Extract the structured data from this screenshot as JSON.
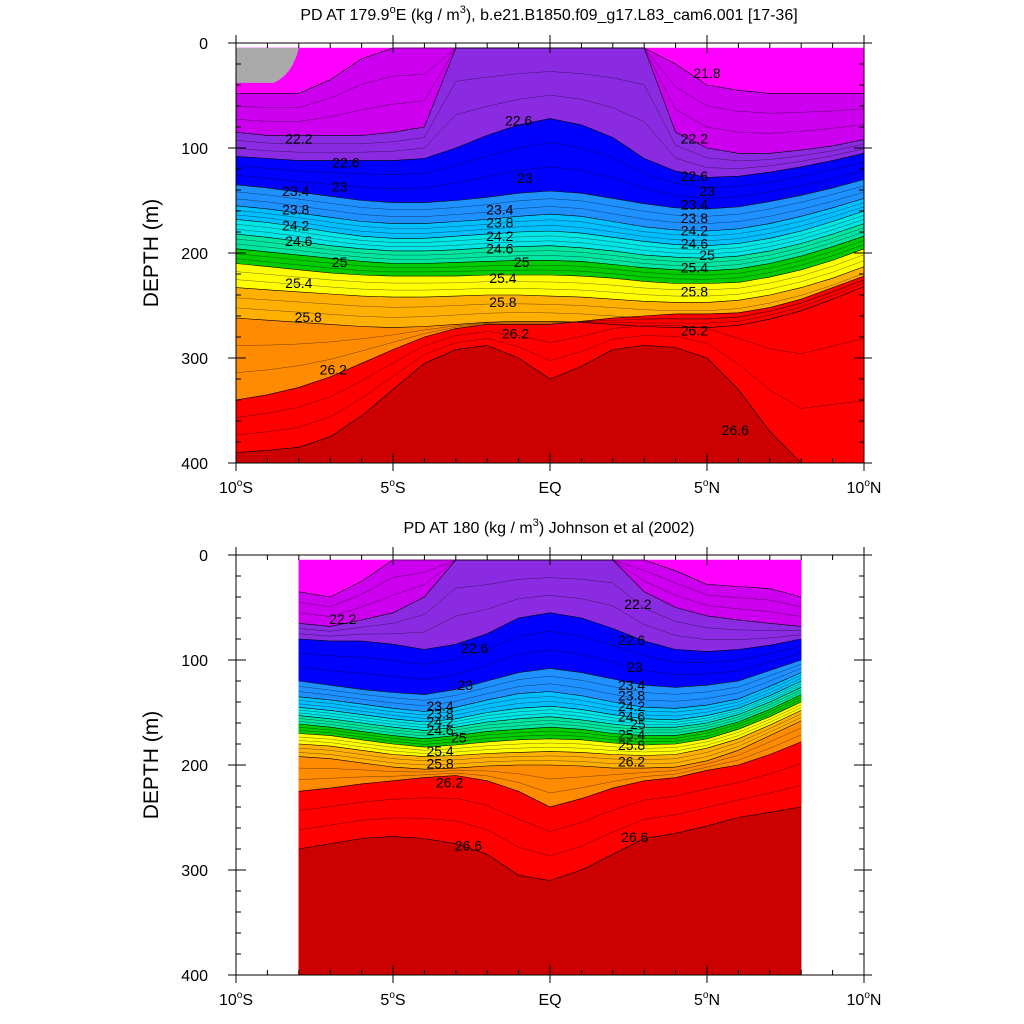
{
  "chart_data": [
    {
      "type": "contour",
      "title_text": "PD AT 179.9°E (kg / m3), b.e21.B1850.f09_g17.L83_cam6.001 [17-36]",
      "title_parts": {
        "a": "PD AT 179.9",
        "deg": "o",
        "b": "E (kg / m",
        "sup": "3",
        "c": "), b.e21.B1850.f09_g17.L83_cam6.001 [17-36]"
      },
      "ylabel": "DEPTH (m)",
      "xlabel": "",
      "x_range": [
        -10,
        10
      ],
      "y_range": [
        0,
        400
      ],
      "y_reversed": true,
      "x_data_extent": [
        -10,
        10
      ],
      "x_ticks": [
        -10,
        -5,
        0,
        5,
        10
      ],
      "x_tick_labels": [
        {
          "num": "10",
          "deg": "o",
          "hem": "S"
        },
        {
          "num": "5",
          "deg": "o",
          "hem": "S"
        },
        {
          "num": "",
          "deg": "",
          "hem": "EQ"
        },
        {
          "num": "5",
          "deg": "o",
          "hem": "N"
        },
        {
          "num": "10",
          "deg": "o",
          "hem": "N"
        }
      ],
      "y_ticks": [
        0,
        100,
        200,
        300,
        400
      ],
      "y_tick_labels": [
        "0",
        "100",
        "200",
        "300",
        "400"
      ],
      "lon": [
        -10,
        -9,
        -8,
        -7,
        -6,
        -5,
        -4,
        -3,
        -2,
        -1,
        0,
        1,
        2,
        3,
        4,
        5,
        6,
        7,
        8,
        9,
        10
      ],
      "isopycnal_depths": [
        {
          "level": 21.8,
          "depth": [
            48,
            48,
            48,
            35,
            15,
            0,
            0,
            0,
            0,
            0,
            0,
            0,
            0,
            0,
            20,
            40,
            45,
            48,
            48,
            48,
            48
          ]
        },
        {
          "level": 22.2,
          "depth": [
            85,
            88,
            88,
            88,
            88,
            85,
            80,
            0,
            0,
            0,
            0,
            0,
            0,
            0,
            85,
            100,
            105,
            105,
            102,
            98,
            92
          ]
        },
        {
          "level": 22.6,
          "depth": [
            108,
            110,
            112,
            112,
            112,
            112,
            110,
            100,
            88,
            78,
            72,
            78,
            90,
            110,
            122,
            128,
            127,
            123,
            118,
            112,
            105
          ]
        },
        {
          "level": 23.0,
          "depth": [
            135,
            138,
            142,
            146,
            150,
            152,
            152,
            150,
            147,
            143,
            141,
            143,
            148,
            153,
            157,
            158,
            156,
            151,
            145,
            138,
            130
          ]
        },
        {
          "level": 23.4,
          "depth": [
            155,
            158,
            162,
            166,
            170,
            172,
            172,
            170,
            168,
            165,
            163,
            165,
            170,
            175,
            178,
            179,
            177,
            172,
            165,
            157,
            148
          ]
        },
        {
          "level": 23.8,
          "depth": [
            168,
            171,
            175,
            180,
            184,
            186,
            186,
            184,
            182,
            180,
            179,
            181,
            185,
            189,
            192,
            193,
            191,
            186,
            179,
            170,
            160
          ]
        },
        {
          "level": 24.2,
          "depth": [
            182,
            185,
            189,
            193,
            196,
            198,
            198,
            197,
            195,
            194,
            193,
            195,
            198,
            202,
            204,
            205,
            203,
            198,
            191,
            182,
            172
          ]
        },
        {
          "level": 24.6,
          "depth": [
            196,
            199,
            202,
            205,
            208,
            210,
            210,
            209,
            208,
            207,
            207,
            208,
            211,
            214,
            216,
            217,
            215,
            210,
            203,
            194,
            184
          ]
        },
        {
          "level": 25.0,
          "depth": [
            210,
            213,
            216,
            219,
            221,
            222,
            222,
            222,
            221,
            221,
            221,
            222,
            224,
            227,
            229,
            229,
            228,
            223,
            216,
            207,
            196
          ]
        },
        {
          "level": 25.4,
          "depth": [
            233,
            235,
            237,
            239,
            241,
            242,
            242,
            241,
            240,
            240,
            241,
            242,
            244,
            246,
            247,
            247,
            245,
            240,
            233,
            224,
            213
          ]
        },
        {
          "level": 25.8,
          "depth": [
            262,
            264,
            266,
            268,
            270,
            271,
            270,
            268,
            266,
            265,
            265,
            266,
            268,
            270,
            271,
            271,
            269,
            263,
            255,
            244,
            232
          ]
        },
        {
          "level": 26.2,
          "depth": [
            340,
            335,
            328,
            318,
            305,
            292,
            280,
            272,
            268,
            268,
            268,
            265,
            262,
            260,
            258,
            258,
            257,
            252,
            244,
            233,
            222
          ]
        },
        {
          "level": 26.6,
          "depth": [
            390,
            388,
            385,
            375,
            355,
            330,
            305,
            292,
            288,
            300,
            320,
            308,
            292,
            288,
            290,
            300,
            330,
            370,
            400,
            400,
            400
          ]
        }
      ],
      "band_colors": [
        "#FF00FF",
        "#CC00EE",
        "#8A2BE2",
        "#0000FF",
        "#1E90FF",
        "#00BFFF",
        "#00E5E5",
        "#00E5A0",
        "#00CC00",
        "#FFFF00",
        "#FFB000",
        "#FF8C00",
        "#FF0000",
        "#CC0000"
      ],
      "labels": [
        {
          "text": "22.2",
          "lon": -8.0,
          "depth": 92
        },
        {
          "text": "22.6",
          "lon": -6.5,
          "depth": 115
        },
        {
          "text": "23",
          "lon": -6.7,
          "depth": 138
        },
        {
          "text": "23.4",
          "lon": -8.1,
          "depth": 142
        },
        {
          "text": "23.8",
          "lon": -8.1,
          "depth": 160
        },
        {
          "text": "24.2",
          "lon": -8.1,
          "depth": 175
        },
        {
          "text": "24.6",
          "lon": -8.0,
          "depth": 190
        },
        {
          "text": "25",
          "lon": -6.7,
          "depth": 210
        },
        {
          "text": "25.4",
          "lon": -8.0,
          "depth": 230
        },
        {
          "text": "25.8",
          "lon": -7.7,
          "depth": 262
        },
        {
          "text": "26.2",
          "lon": -6.9,
          "depth": 312
        },
        {
          "text": "22.6",
          "lon": -1.0,
          "depth": 75
        },
        {
          "text": "23",
          "lon": -0.8,
          "depth": 130
        },
        {
          "text": "23.4",
          "lon": -1.6,
          "depth": 160
        },
        {
          "text": "23.8",
          "lon": -1.6,
          "depth": 172
        },
        {
          "text": "24.2",
          "lon": -1.6,
          "depth": 185
        },
        {
          "text": "24.6",
          "lon": -1.6,
          "depth": 197
        },
        {
          "text": "25",
          "lon": -0.9,
          "depth": 210
        },
        {
          "text": "25.4",
          "lon": -1.5,
          "depth": 225
        },
        {
          "text": "25.8",
          "lon": -1.5,
          "depth": 248
        },
        {
          "text": "26.2",
          "lon": -1.1,
          "depth": 278
        },
        {
          "text": "21.8",
          "lon": 5.0,
          "depth": 30
        },
        {
          "text": "22.2",
          "lon": 4.6,
          "depth": 92
        },
        {
          "text": "22.6",
          "lon": 4.6,
          "depth": 128
        },
        {
          "text": "23",
          "lon": 5.0,
          "depth": 142
        },
        {
          "text": "23.4",
          "lon": 4.6,
          "depth": 155
        },
        {
          "text": "23.8",
          "lon": 4.6,
          "depth": 168
        },
        {
          "text": "24.2",
          "lon": 4.6,
          "depth": 180
        },
        {
          "text": "24.6",
          "lon": 4.6,
          "depth": 192
        },
        {
          "text": "25",
          "lon": 5.0,
          "depth": 203
        },
        {
          "text": "25.4",
          "lon": 4.6,
          "depth": 215
        },
        {
          "text": "25.8",
          "lon": 4.6,
          "depth": 238
        },
        {
          "text": "26.2",
          "lon": 4.6,
          "depth": 275
        },
        {
          "text": "26.6",
          "lon": 5.9,
          "depth": 370
        }
      ]
    },
    {
      "type": "contour",
      "title_text": "PD AT 180 (kg / m3) Johnson et al (2002)",
      "title_parts": {
        "a": "PD AT 180 (kg / m",
        "sup": "3",
        "c": ") Johnson et al (2002)"
      },
      "ylabel": "DEPTH (m)",
      "xlabel": "",
      "x_range": [
        -10,
        10
      ],
      "y_range": [
        0,
        400
      ],
      "y_reversed": true,
      "x_data_extent": [
        -8,
        8
      ],
      "x_ticks": [
        -10,
        -5,
        0,
        5,
        10
      ],
      "x_tick_labels": [
        {
          "num": "10",
          "deg": "o",
          "hem": "S"
        },
        {
          "num": "5",
          "deg": "o",
          "hem": "S"
        },
        {
          "num": "",
          "deg": "",
          "hem": "EQ"
        },
        {
          "num": "5",
          "deg": "o",
          "hem": "N"
        },
        {
          "num": "10",
          "deg": "o",
          "hem": "N"
        }
      ],
      "y_ticks": [
        0,
        100,
        200,
        300,
        400
      ],
      "y_tick_labels": [
        "0",
        "100",
        "200",
        "300",
        "400"
      ],
      "lon": [
        -8,
        -7,
        -6,
        -5,
        -4,
        -3,
        -2,
        -1,
        0,
        1,
        2,
        3,
        4,
        5,
        6,
        7,
        8
      ],
      "isopycnal_depths": [
        {
          "level": 21.8,
          "depth": [
            35,
            40,
            25,
            0,
            0,
            0,
            0,
            0,
            0,
            0,
            0,
            0,
            15,
            28,
            30,
            32,
            40
          ]
        },
        {
          "level": 22.2,
          "depth": [
            65,
            68,
            62,
            55,
            40,
            0,
            0,
            0,
            0,
            0,
            0,
            35,
            50,
            58,
            62,
            65,
            68
          ]
        },
        {
          "level": 22.6,
          "depth": [
            80,
            82,
            82,
            85,
            90,
            85,
            75,
            60,
            55,
            60,
            70,
            82,
            90,
            92,
            90,
            86,
            80
          ]
        },
        {
          "level": 23.0,
          "depth": [
            120,
            124,
            128,
            131,
            133,
            128,
            120,
            112,
            108,
            112,
            118,
            124,
            126,
            124,
            120,
            110,
            100
          ]
        },
        {
          "level": 23.4,
          "depth": [
            135,
            138,
            142,
            146,
            149,
            145,
            138,
            132,
            130,
            134,
            140,
            145,
            146,
            143,
            137,
            125,
            112
          ]
        },
        {
          "level": 23.8,
          "depth": [
            145,
            148,
            152,
            156,
            159,
            156,
            150,
            146,
            144,
            147,
            152,
            156,
            157,
            153,
            146,
            134,
            120
          ]
        },
        {
          "level": 24.2,
          "depth": [
            153,
            156,
            160,
            164,
            167,
            164,
            159,
            156,
            154,
            157,
            161,
            164,
            164,
            160,
            152,
            140,
            126
          ]
        },
        {
          "level": 24.6,
          "depth": [
            161,
            164,
            168,
            172,
            175,
            172,
            168,
            166,
            164,
            166,
            170,
            172,
            172,
            167,
            159,
            147,
            133
          ]
        },
        {
          "level": 25.0,
          "depth": [
            170,
            172,
            176,
            180,
            183,
            181,
            178,
            176,
            175,
            176,
            179,
            181,
            180,
            175,
            166,
            154,
            140
          ]
        },
        {
          "level": 25.4,
          "depth": [
            180,
            182,
            186,
            190,
            192,
            191,
            189,
            188,
            187,
            188,
            190,
            191,
            190,
            184,
            175,
            162,
            148
          ]
        },
        {
          "level": 25.8,
          "depth": [
            192,
            194,
            198,
            202,
            204,
            203,
            201,
            200,
            200,
            201,
            203,
            203,
            202,
            196,
            186,
            172,
            158
          ]
        },
        {
          "level": 26.2,
          "depth": [
            225,
            222,
            218,
            215,
            212,
            210,
            215,
            225,
            240,
            232,
            222,
            215,
            212,
            205,
            200,
            190,
            178
          ]
        },
        {
          "level": 26.6,
          "depth": [
            280,
            275,
            270,
            268,
            270,
            275,
            285,
            305,
            310,
            300,
            285,
            270,
            265,
            258,
            250,
            245,
            240
          ]
        }
      ],
      "band_colors": [
        "#FF00FF",
        "#CC00EE",
        "#8A2BE2",
        "#0000FF",
        "#1E90FF",
        "#00BFFF",
        "#00E5E5",
        "#00E5A0",
        "#00CC00",
        "#FFFF00",
        "#FFB000",
        "#FF8C00",
        "#FF0000",
        "#CC0000"
      ],
      "labels": [
        {
          "text": "22.2",
          "lon": -6.6,
          "depth": 62
        },
        {
          "text": "22.6",
          "lon": -2.4,
          "depth": 90
        },
        {
          "text": "23",
          "lon": -2.7,
          "depth": 125
        },
        {
          "text": "23.4",
          "lon": -3.5,
          "depth": 145
        },
        {
          "text": "23.8",
          "lon": -3.5,
          "depth": 152
        },
        {
          "text": "24.2",
          "lon": -3.5,
          "depth": 160
        },
        {
          "text": "24.6",
          "lon": -3.5,
          "depth": 168
        },
        {
          "text": "25",
          "lon": -2.9,
          "depth": 175
        },
        {
          "text": "25.4",
          "lon": -3.5,
          "depth": 188
        },
        {
          "text": "25.8",
          "lon": -3.5,
          "depth": 200
        },
        {
          "text": "26.2",
          "lon": -3.2,
          "depth": 218
        },
        {
          "text": "26.6",
          "lon": -2.6,
          "depth": 278
        },
        {
          "text": "22.2",
          "lon": 2.8,
          "depth": 48
        },
        {
          "text": "22.6",
          "lon": 2.6,
          "depth": 82
        },
        {
          "text": "23",
          "lon": 2.7,
          "depth": 108
        },
        {
          "text": "23.4",
          "lon": 2.6,
          "depth": 125
        },
        {
          "text": "23.8",
          "lon": 2.6,
          "depth": 135
        },
        {
          "text": "24.2",
          "lon": 2.6,
          "depth": 145
        },
        {
          "text": "24.6",
          "lon": 2.6,
          "depth": 155
        },
        {
          "text": "25",
          "lon": 2.8,
          "depth": 162
        },
        {
          "text": "25.4",
          "lon": 2.6,
          "depth": 172
        },
        {
          "text": "25.8",
          "lon": 2.6,
          "depth": 182
        },
        {
          "text": "26.2",
          "lon": 2.6,
          "depth": 198
        },
        {
          "text": "26.6",
          "lon": 2.7,
          "depth": 270
        }
      ]
    }
  ]
}
